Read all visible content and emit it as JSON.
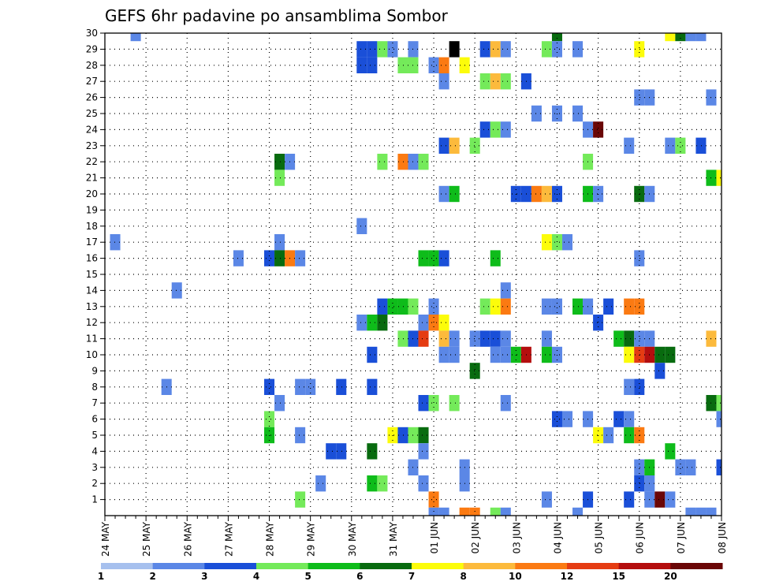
{
  "chart_data": {
    "type": "heatmap",
    "title": "GEFS 6hr padavine po ansamblima Sombor",
    "x_ticks": [
      "24 MAY",
      "25 MAY",
      "26 MAY",
      "27 MAY",
      "28 MAY",
      "29 MAY",
      "30 MAY",
      "31 MAY",
      "01 JUN",
      "02 JUN",
      "03 JUN",
      "04 JUN",
      "05 JUN",
      "06 JUN",
      "07 JUN",
      "08 JUN"
    ],
    "y_ticks": [
      "1",
      "2",
      "3",
      "4",
      "5",
      "6",
      "7",
      "8",
      "9",
      "10",
      "11",
      "12",
      "13",
      "14",
      "15",
      "16",
      "17",
      "18",
      "19",
      "20",
      "21",
      "22",
      "23",
      "24",
      "25",
      "26",
      "27",
      "28",
      "29",
      "30"
    ],
    "x_steps_per_day": 4,
    "x_range_steps": [
      0,
      60
    ],
    "y_range": [
      0,
      30
    ],
    "grid": true,
    "colorbar": {
      "labels": [
        "1",
        "2",
        "3",
        "4",
        "5",
        "6",
        "7",
        "8",
        "10",
        "12",
        "15",
        "20"
      ],
      "colors": [
        "#a6c0ee",
        "#5b87e6",
        "#1a4fd8",
        "#74ea5a",
        "#0ebc1a",
        "#086b0f",
        "#fcfc0a",
        "#fcba3c",
        "#fb7a12",
        "#e53c12",
        "#b40e0e",
        "#6a0606"
      ]
    },
    "cells": [
      [
        3,
        30,
        1
      ],
      [
        44,
        30,
        5
      ],
      [
        55,
        30,
        6
      ],
      [
        56,
        30,
        5
      ],
      [
        57,
        30,
        1
      ],
      [
        58,
        30,
        1
      ],
      [
        25,
        29,
        2
      ],
      [
        26,
        29,
        2
      ],
      [
        27,
        29,
        3
      ],
      [
        28,
        29,
        1
      ],
      [
        30,
        29,
        1
      ],
      [
        34,
        29,
        12
      ],
      [
        37,
        29,
        2
      ],
      [
        38,
        29,
        7
      ],
      [
        39,
        29,
        1
      ],
      [
        43,
        29,
        3
      ],
      [
        44,
        29,
        1
      ],
      [
        46,
        29,
        1
      ],
      [
        52,
        29,
        6
      ],
      [
        25,
        28,
        2
      ],
      [
        26,
        28,
        2
      ],
      [
        29,
        28,
        3
      ],
      [
        30,
        28,
        3
      ],
      [
        32,
        28,
        1
      ],
      [
        33,
        28,
        8
      ],
      [
        35,
        28,
        6
      ],
      [
        33,
        27,
        1
      ],
      [
        37,
        27,
        3
      ],
      [
        38,
        27,
        7
      ],
      [
        39,
        27,
        3
      ],
      [
        41,
        27,
        2
      ],
      [
        52,
        26,
        1
      ],
      [
        53,
        26,
        1
      ],
      [
        59,
        26,
        1
      ],
      [
        42,
        25,
        1
      ],
      [
        44,
        25,
        1
      ],
      [
        46,
        25,
        1
      ],
      [
        37,
        24,
        2
      ],
      [
        38,
        24,
        3
      ],
      [
        39,
        24,
        1
      ],
      [
        47,
        24,
        1
      ],
      [
        48,
        24,
        11
      ],
      [
        33,
        23,
        2
      ],
      [
        34,
        23,
        7
      ],
      [
        36,
        23,
        3
      ],
      [
        51,
        23,
        1
      ],
      [
        55,
        23,
        1
      ],
      [
        56,
        23,
        3
      ],
      [
        58,
        23,
        2
      ],
      [
        17,
        22,
        5
      ],
      [
        18,
        22,
        1
      ],
      [
        27,
        22,
        3
      ],
      [
        29,
        22,
        8
      ],
      [
        30,
        22,
        1
      ],
      [
        31,
        22,
        3
      ],
      [
        47,
        22,
        3
      ],
      [
        17,
        21,
        3
      ],
      [
        59,
        21,
        4
      ],
      [
        60,
        21,
        6
      ],
      [
        33,
        20,
        1
      ],
      [
        34,
        20,
        4
      ],
      [
        40,
        20,
        2
      ],
      [
        41,
        20,
        2
      ],
      [
        42,
        20,
        8
      ],
      [
        43,
        20,
        7
      ],
      [
        44,
        20,
        2
      ],
      [
        47,
        20,
        4
      ],
      [
        48,
        20,
        1
      ],
      [
        52,
        20,
        5
      ],
      [
        53,
        20,
        1
      ],
      [
        25,
        18,
        1
      ],
      [
        1,
        17,
        1
      ],
      [
        17,
        17,
        1
      ],
      [
        43,
        17,
        6
      ],
      [
        44,
        17,
        3
      ],
      [
        45,
        17,
        1
      ],
      [
        13,
        16,
        1
      ],
      [
        16,
        16,
        2
      ],
      [
        17,
        16,
        5
      ],
      [
        18,
        16,
        8
      ],
      [
        19,
        16,
        1
      ],
      [
        31,
        16,
        4
      ],
      [
        32,
        16,
        4
      ],
      [
        33,
        16,
        2
      ],
      [
        38,
        16,
        4
      ],
      [
        52,
        16,
        1
      ],
      [
        7,
        14,
        1
      ],
      [
        39,
        14,
        1
      ],
      [
        27,
        13,
        2
      ],
      [
        28,
        13,
        4
      ],
      [
        29,
        13,
        4
      ],
      [
        30,
        13,
        3
      ],
      [
        32,
        13,
        1
      ],
      [
        37,
        13,
        3
      ],
      [
        38,
        13,
        6
      ],
      [
        39,
        13,
        8
      ],
      [
        43,
        13,
        1
      ],
      [
        44,
        13,
        1
      ],
      [
        46,
        13,
        4
      ],
      [
        47,
        13,
        1
      ],
      [
        49,
        13,
        2
      ],
      [
        51,
        13,
        8
      ],
      [
        52,
        13,
        8
      ],
      [
        25,
        12,
        1
      ],
      [
        26,
        12,
        4
      ],
      [
        27,
        12,
        5
      ],
      [
        31,
        12,
        1
      ],
      [
        32,
        12,
        8
      ],
      [
        33,
        12,
        6
      ],
      [
        48,
        12,
        2
      ],
      [
        29,
        11,
        3
      ],
      [
        30,
        11,
        2
      ],
      [
        31,
        11,
        9
      ],
      [
        33,
        11,
        7
      ],
      [
        34,
        11,
        1
      ],
      [
        36,
        11,
        1
      ],
      [
        37,
        11,
        2
      ],
      [
        38,
        11,
        2
      ],
      [
        39,
        11,
        1
      ],
      [
        43,
        11,
        1
      ],
      [
        50,
        11,
        4
      ],
      [
        51,
        11,
        5
      ],
      [
        52,
        11,
        1
      ],
      [
        53,
        11,
        1
      ],
      [
        59,
        11,
        7
      ],
      [
        26,
        10,
        2
      ],
      [
        33,
        10,
        1
      ],
      [
        34,
        10,
        1
      ],
      [
        38,
        10,
        1
      ],
      [
        39,
        10,
        1
      ],
      [
        40,
        10,
        4
      ],
      [
        41,
        10,
        10
      ],
      [
        43,
        10,
        4
      ],
      [
        44,
        10,
        1
      ],
      [
        51,
        10,
        6
      ],
      [
        52,
        10,
        9
      ],
      [
        53,
        10,
        10
      ],
      [
        54,
        10,
        5
      ],
      [
        55,
        10,
        5
      ],
      [
        36,
        9,
        5
      ],
      [
        54,
        9,
        2
      ],
      [
        6,
        8,
        1
      ],
      [
        16,
        8,
        2
      ],
      [
        19,
        8,
        1
      ],
      [
        20,
        8,
        1
      ],
      [
        23,
        8,
        2
      ],
      [
        26,
        8,
        2
      ],
      [
        51,
        8,
        1
      ],
      [
        52,
        8,
        2
      ],
      [
        17,
        7,
        1
      ],
      [
        31,
        7,
        2
      ],
      [
        32,
        7,
        3
      ],
      [
        34,
        7,
        3
      ],
      [
        39,
        7,
        1
      ],
      [
        59,
        7,
        5
      ],
      [
        60,
        7,
        3
      ],
      [
        16,
        6,
        3
      ],
      [
        44,
        6,
        2
      ],
      [
        45,
        6,
        1
      ],
      [
        47,
        6,
        1
      ],
      [
        50,
        6,
        2
      ],
      [
        51,
        6,
        1
      ],
      [
        60,
        6,
        1
      ],
      [
        16,
        5,
        4
      ],
      [
        19,
        5,
        1
      ],
      [
        28,
        5,
        6
      ],
      [
        29,
        5,
        2
      ],
      [
        30,
        5,
        3
      ],
      [
        31,
        5,
        5
      ],
      [
        48,
        5,
        6
      ],
      [
        49,
        5,
        1
      ],
      [
        51,
        5,
        4
      ],
      [
        52,
        5,
        8
      ],
      [
        22,
        4,
        2
      ],
      [
        23,
        4,
        2
      ],
      [
        26,
        4,
        5
      ],
      [
        31,
        4,
        1
      ],
      [
        55,
        4,
        4
      ],
      [
        30,
        3,
        1
      ],
      [
        35,
        3,
        1
      ],
      [
        52,
        3,
        1
      ],
      [
        53,
        3,
        4
      ],
      [
        56,
        3,
        1
      ],
      [
        57,
        3,
        1
      ],
      [
        60,
        3,
        2
      ],
      [
        21,
        2,
        1
      ],
      [
        26,
        2,
        4
      ],
      [
        27,
        2,
        3
      ],
      [
        31,
        2,
        1
      ],
      [
        35,
        2,
        1
      ],
      [
        52,
        2,
        2
      ],
      [
        53,
        2,
        1
      ],
      [
        19,
        1,
        3
      ],
      [
        32,
        1,
        8
      ],
      [
        43,
        1,
        1
      ],
      [
        47,
        1,
        2
      ],
      [
        51,
        1,
        2
      ],
      [
        53,
        1,
        1
      ],
      [
        54,
        1,
        11
      ],
      [
        55,
        1,
        1
      ],
      [
        32,
        0,
        1
      ],
      [
        33,
        0,
        1
      ],
      [
        35,
        0,
        8
      ],
      [
        36,
        0,
        8
      ],
      [
        38,
        0,
        3
      ],
      [
        39,
        0,
        1
      ],
      [
        46,
        0,
        1
      ],
      [
        57,
        0,
        1
      ],
      [
        58,
        0,
        1
      ],
      [
        59,
        0,
        1
      ]
    ]
  }
}
